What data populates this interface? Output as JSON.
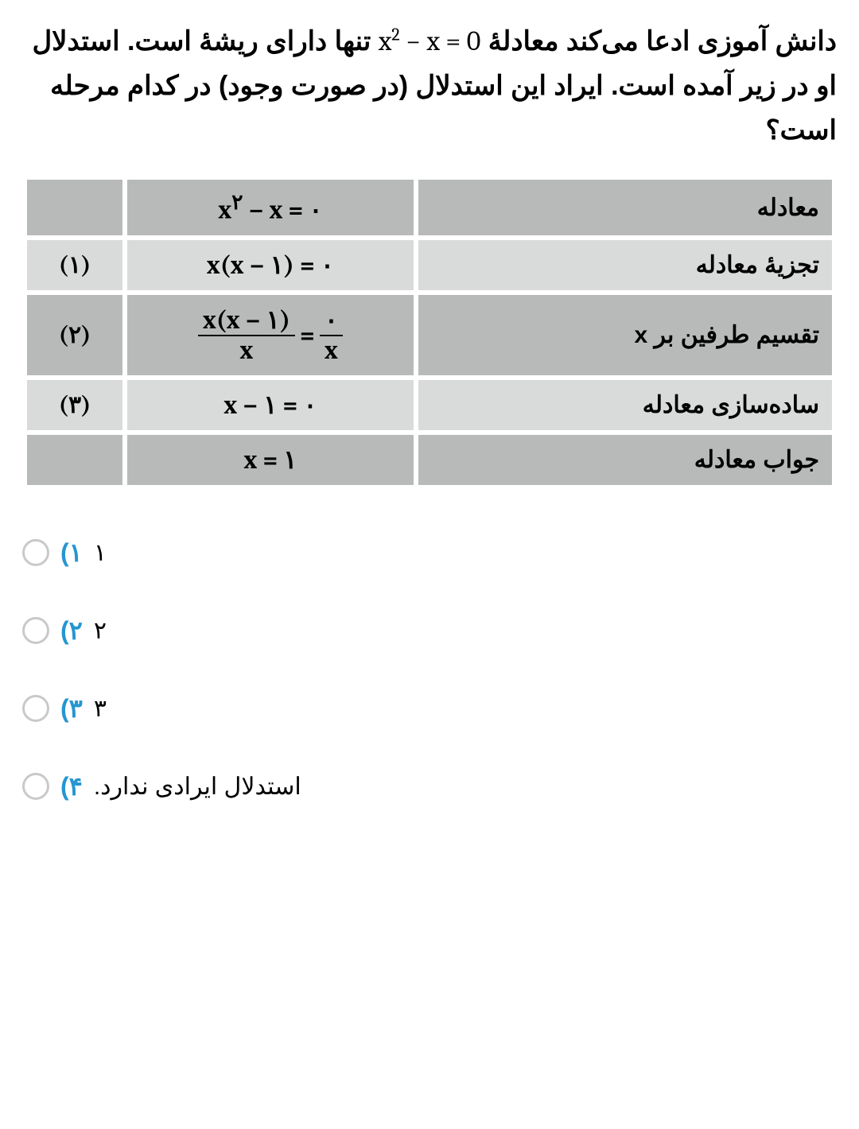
{
  "question": {
    "line_before_eq": "دانش آموزی ادعا می‌کند معادلهٔ",
    "equation_html": "x<sup>2</sup> − x = 0",
    "line_after_eq": "تنها دارای ریشهٔ است. استدلال او در زیر آمده است. ایراد این استدلال (در صورت وجود) در کدام مرحله است؟"
  },
  "colors": {
    "row_dark": "#b7bab9",
    "row_light": "#d9dbda",
    "option_num": "#2596d1",
    "radio_border": "#c9c9c9"
  },
  "rows": [
    {
      "shade": "dark",
      "desc": "معادله",
      "math_html": "x<sup>۲</sup> − x = ۰",
      "num": ""
    },
    {
      "shade": "light",
      "desc": "تجزیهٔ معادله",
      "math_html": "x(x − ۱) = ۰",
      "num": "(۱)"
    },
    {
      "shade": "dark",
      "desc": "تقسیم طرفین بر x",
      "math_html": "<span class=\"frac\"><span class=\"num\">x(x − ۱)</span><span class=\"den\">x</span></span><span class=\"eq-sign\">=</span><span class=\"frac\"><span class=\"num\">۰</span><span class=\"den\">x</span></span>",
      "num": "(۲)"
    },
    {
      "shade": "light",
      "desc": "ساده‌سازی معادله",
      "math_html": "x − ۱ = ۰",
      "num": "(۳)"
    },
    {
      "shade": "dark",
      "desc": "جواب معادله",
      "math_html": "x = ۱",
      "num": ""
    }
  ],
  "options": [
    {
      "num": "۱)",
      "text": "۱"
    },
    {
      "num": "۲)",
      "text": "۲"
    },
    {
      "num": "۳)",
      "text": "۳"
    },
    {
      "num": "۴)",
      "text": "استدلال ایرادی ندارد."
    }
  ]
}
